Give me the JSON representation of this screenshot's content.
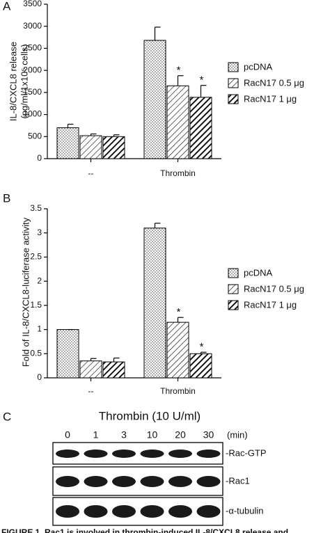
{
  "chart_data": [
    {
      "type": "bar",
      "panel_label": "A",
      "y_label": [
        "IL-8/CXCL8 release",
        "(pg/ml/1x10⁵ cells)"
      ],
      "categories": [
        "--",
        "Thrombin"
      ],
      "series": [
        {
          "name": "pcDNA",
          "pattern": "dots",
          "values": [
            700,
            2680
          ],
          "errors": [
            80,
            300
          ],
          "significance": [
            null,
            null
          ]
        },
        {
          "name": "RacN17 0.5 μg",
          "pattern": "hatch",
          "values": [
            520,
            1650
          ],
          "errors": [
            40,
            230
          ],
          "significance": [
            null,
            "*"
          ]
        },
        {
          "name": "RacN17 1 μg",
          "pattern": "dense",
          "values": [
            500,
            1390
          ],
          "errors": [
            40,
            270
          ],
          "significance": [
            null,
            "*"
          ]
        }
      ],
      "ylim": [
        0,
        3500
      ],
      "yticks": [
        0,
        500,
        1000,
        1500,
        2000,
        2500,
        3000,
        3500
      ],
      "grid": false
    },
    {
      "type": "bar",
      "panel_label": "B",
      "y_label": [
        "Fold of IL-8/CXCL8-luciferase activity"
      ],
      "categories": [
        "--",
        "Thrombin"
      ],
      "series": [
        {
          "name": "pcDNA",
          "pattern": "dots",
          "values": [
            1,
            3.1
          ],
          "errors": [
            0,
            0.1
          ],
          "significance": [
            null,
            null
          ]
        },
        {
          "name": "RacN17 0.5 μg",
          "pattern": "hatch",
          "values": [
            0.35,
            1.15
          ],
          "errors": [
            0.05,
            0.1
          ],
          "significance": [
            null,
            "*"
          ]
        },
        {
          "name": "RacN17 1 μg",
          "pattern": "dense",
          "values": [
            0.33,
            0.5
          ],
          "errors": [
            0.08,
            0.03
          ],
          "significance": [
            null,
            "*"
          ]
        }
      ],
      "ylim": [
        0,
        3.5
      ],
      "yticks": [
        0,
        0.5,
        1,
        1.5,
        2,
        2.5,
        3,
        3.5
      ],
      "grid": false
    }
  ],
  "blot": {
    "panel_label": "C",
    "title": "Thrombin (10 U/ml)",
    "lanes": [
      "0",
      "1",
      "3",
      "10",
      "20",
      "30"
    ],
    "unit": "(min)",
    "rows": [
      "-Rac-GTP",
      "-Rac1",
      "-α-tubulin"
    ]
  },
  "caption": "FIGURE 1. Rac1 is involved in thrombin-induced IL-8/CXCL8 release and"
}
